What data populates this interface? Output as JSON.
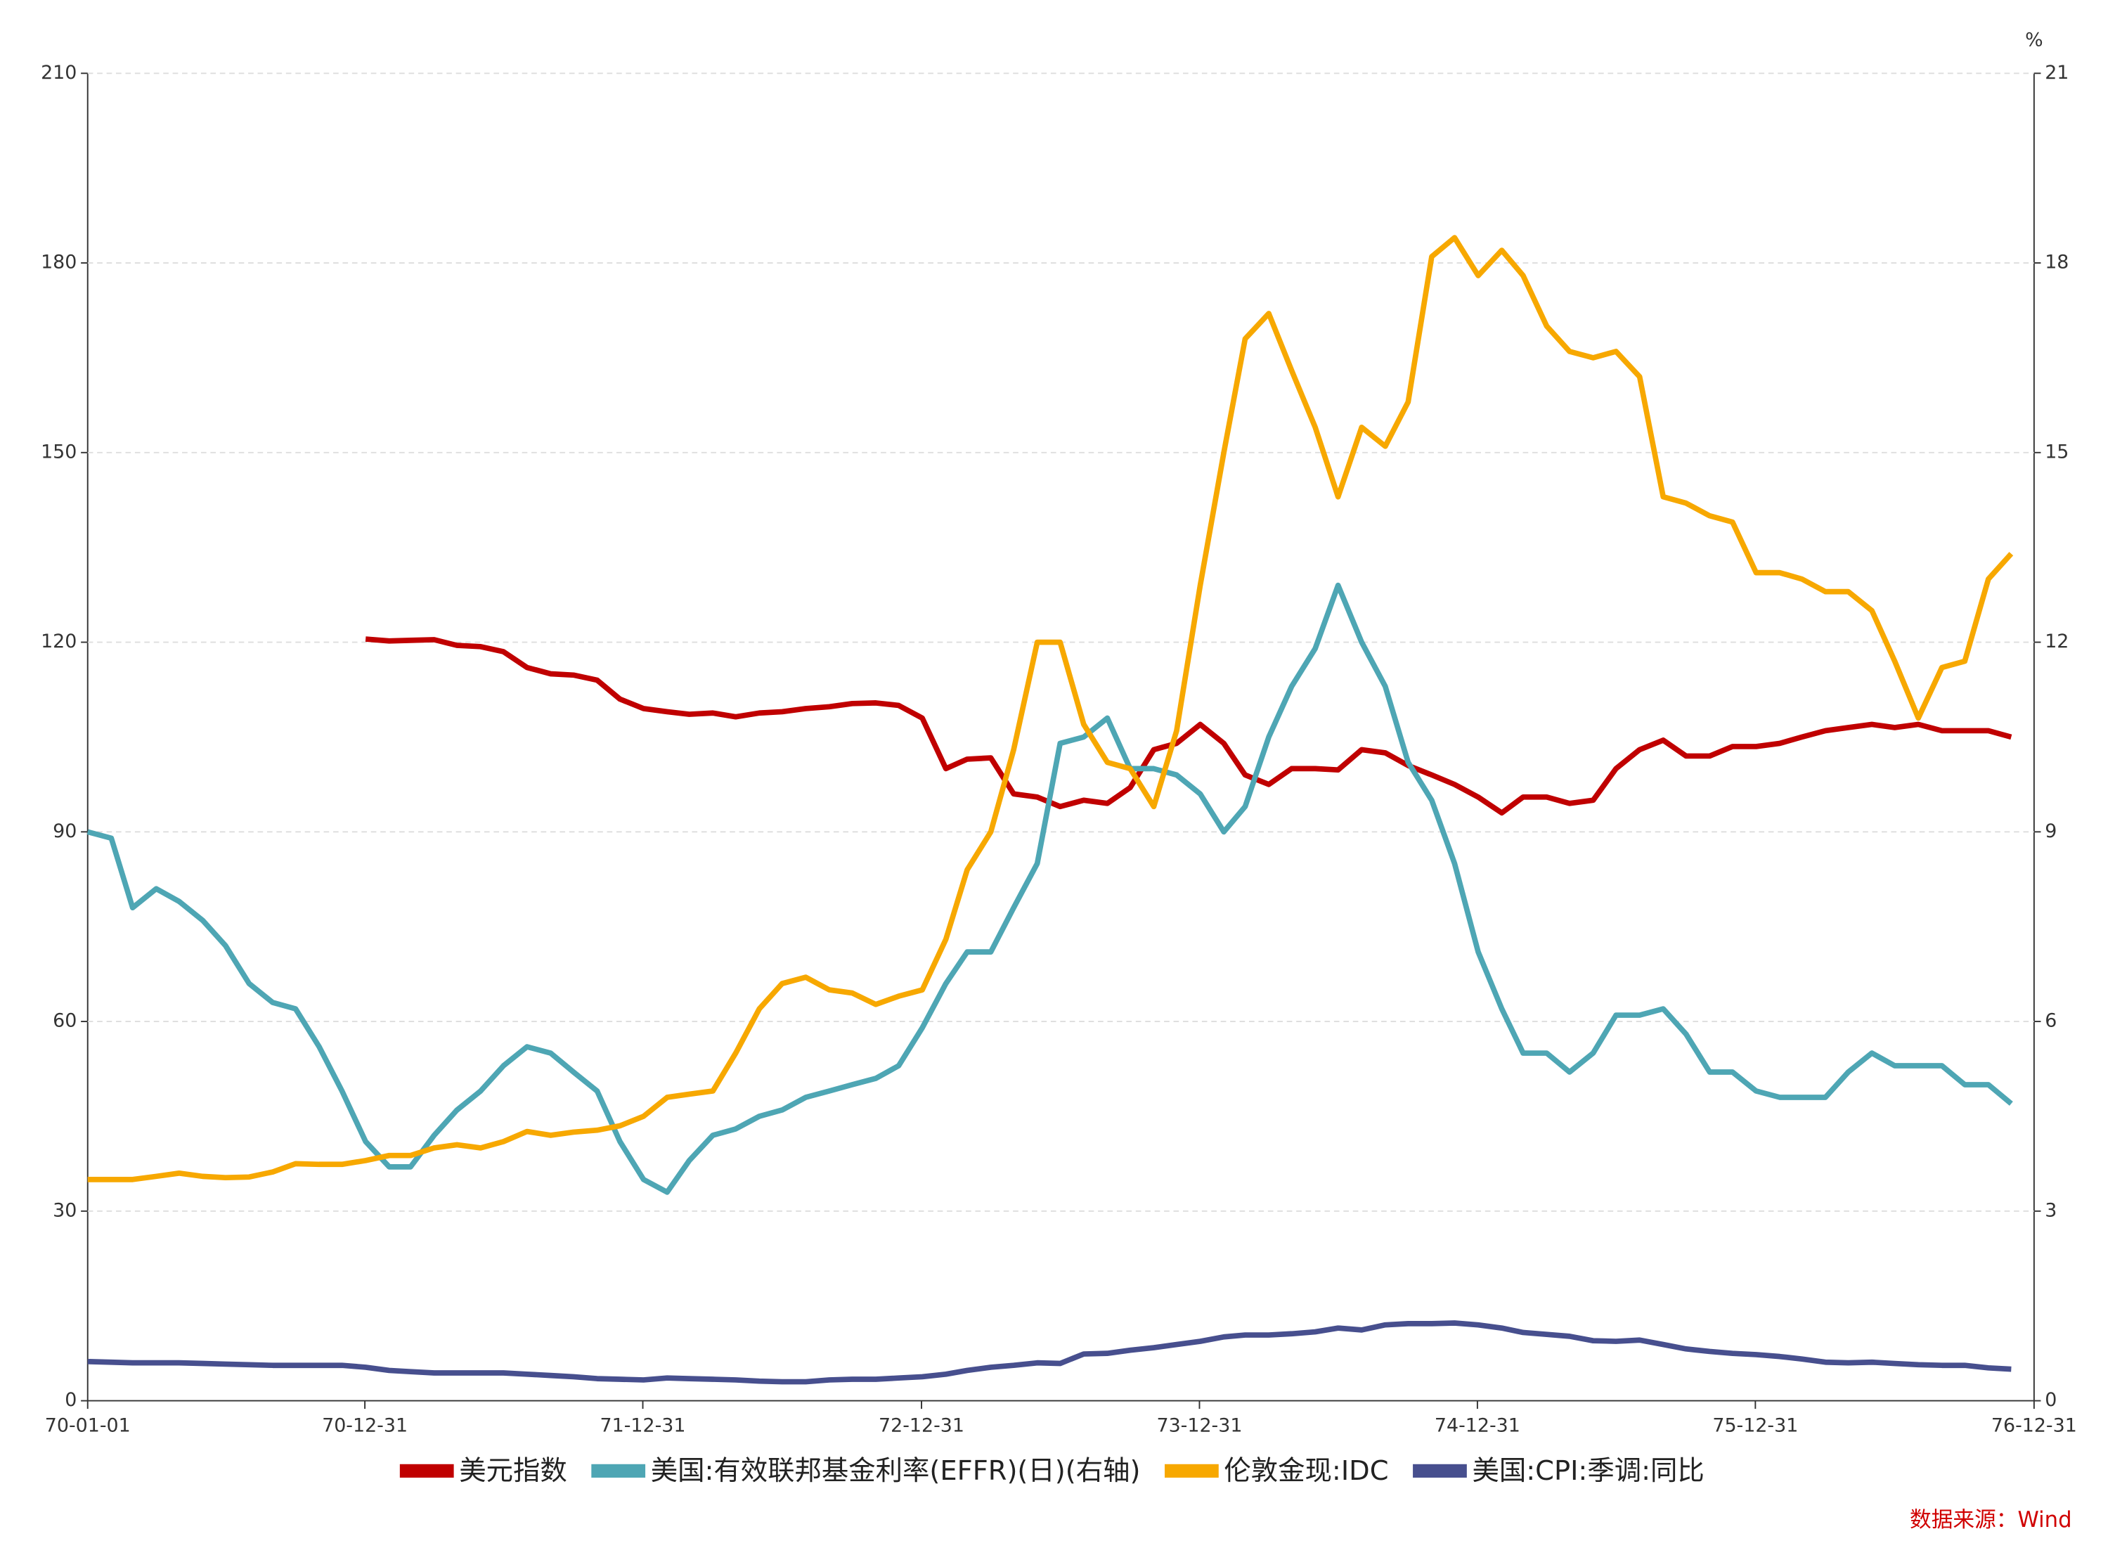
{
  "chart_data": {
    "type": "line",
    "x": [
      "70-01-01",
      "70-02-01",
      "70-03-01",
      "70-04-01",
      "70-05-01",
      "70-06-01",
      "70-07-01",
      "70-08-01",
      "70-09-01",
      "70-10-01",
      "70-11-01",
      "70-12-01",
      "71-01-01",
      "71-02-01",
      "71-03-01",
      "71-04-01",
      "71-05-01",
      "71-06-01",
      "71-07-01",
      "71-08-01",
      "71-09-01",
      "71-10-01",
      "71-11-01",
      "71-12-01",
      "72-01-01",
      "72-02-01",
      "72-03-01",
      "72-04-01",
      "72-05-01",
      "72-06-01",
      "72-07-01",
      "72-08-01",
      "72-09-01",
      "72-10-01",
      "72-11-01",
      "72-12-01",
      "73-01-01",
      "73-02-01",
      "73-03-01",
      "73-04-01",
      "73-05-01",
      "73-06-01",
      "73-07-01",
      "73-08-01",
      "73-09-01",
      "73-10-01",
      "73-11-01",
      "73-12-01",
      "74-01-01",
      "74-02-01",
      "74-03-01",
      "74-04-01",
      "74-05-01",
      "74-06-01",
      "74-07-01",
      "74-08-01",
      "74-09-01",
      "74-10-01",
      "74-11-01",
      "74-12-01",
      "75-01-01",
      "75-02-01",
      "75-03-01",
      "75-04-01",
      "75-05-01",
      "75-06-01",
      "75-07-01",
      "75-08-01",
      "75-09-01",
      "75-10-01",
      "75-11-01",
      "75-12-01",
      "76-01-01",
      "76-02-01",
      "76-03-01",
      "76-04-01",
      "76-05-01",
      "76-06-01",
      "76-07-01",
      "76-08-01",
      "76-09-01",
      "76-10-01",
      "76-11-01",
      "76-12-01"
    ],
    "xlim": [
      "70-01-01",
      "76-12-31"
    ],
    "xticks": [
      "70-01-01",
      "70-12-31",
      "71-12-31",
      "72-12-31",
      "73-12-31",
      "74-12-31",
      "75-12-31",
      "76-12-31"
    ],
    "ylim": [
      0,
      210
    ],
    "yticks": [
      0,
      30,
      60,
      90,
      120,
      150,
      180,
      210
    ],
    "y2lim": [
      0,
      21
    ],
    "y2ticks": [
      0,
      3,
      6,
      9,
      12,
      15,
      18,
      21
    ],
    "y2_unit": "%",
    "grid": true,
    "source": "数据来源：Wind",
    "series": [
      {
        "name": "美元指数",
        "color": "#c00000",
        "values": [
          null,
          null,
          null,
          null,
          null,
          null,
          null,
          null,
          null,
          null,
          null,
          null,
          120.5,
          120.2,
          120.3,
          120.4,
          119.5,
          119.3,
          118.5,
          116,
          115,
          114.8,
          114,
          111,
          109.5,
          109,
          108.6,
          108.8,
          108.2,
          108.8,
          109,
          109.5,
          109.8,
          110.3,
          110.4,
          110,
          108,
          100,
          101.5,
          101.7,
          96,
          95.5,
          94,
          95,
          94.5,
          97,
          103,
          104,
          107,
          104,
          99,
          97.5,
          100,
          100,
          99.8,
          103,
          102.5,
          100.5,
          99,
          97.5,
          95.5,
          93,
          95.5,
          95.5,
          94.5,
          95,
          100,
          103,
          104.5,
          102,
          102,
          103.5,
          103.5,
          104,
          105,
          106,
          106.5,
          107,
          106.5,
          107,
          106,
          106,
          106,
          105
        ]
      },
      {
        "name": "美国:有效联邦基金利率(EFFR)(日)(右轴)",
        "color": "#4ea6b4",
        "axis": "y2",
        "values": [
          9.0,
          8.9,
          7.8,
          8.1,
          7.9,
          7.6,
          7.2,
          6.6,
          6.3,
          6.2,
          5.6,
          4.9,
          4.1,
          3.7,
          3.7,
          4.2,
          4.6,
          4.9,
          5.3,
          5.6,
          5.5,
          5.2,
          4.9,
          4.1,
          3.5,
          3.3,
          3.8,
          4.2,
          4.3,
          4.5,
          4.6,
          4.8,
          4.9,
          5.0,
          5.1,
          5.3,
          5.9,
          6.6,
          7.1,
          7.1,
          7.8,
          8.5,
          10.4,
          10.5,
          10.8,
          10.0,
          10.0,
          9.9,
          9.6,
          9.0,
          9.4,
          10.5,
          11.3,
          11.9,
          12.9,
          12.0,
          11.3,
          10.1,
          9.5,
          8.5,
          7.1,
          6.2,
          5.5,
          5.5,
          5.2,
          5.5,
          6.1,
          6.1,
          6.2,
          5.8,
          5.2,
          5.2,
          4.9,
          4.8,
          4.8,
          4.8,
          5.2,
          5.5,
          5.3,
          5.3,
          5.3,
          5.0,
          5.0,
          4.7
        ]
      },
      {
        "name": "伦敦金现:IDC",
        "color": "#f7a800",
        "values": [
          35,
          35,
          35,
          35.5,
          36,
          35.5,
          35.3,
          35.4,
          36.2,
          37.5,
          37.4,
          37.4,
          38,
          38.8,
          38.8,
          40,
          40.5,
          40,
          41,
          42.6,
          42,
          42.5,
          42.8,
          43.5,
          45,
          48,
          48.5,
          49,
          55,
          62,
          66,
          67,
          65,
          64.5,
          62.7,
          64,
          65,
          73,
          84,
          90,
          103,
          120,
          120,
          107,
          101,
          100,
          94,
          106,
          129,
          150,
          168,
          172,
          163,
          154,
          143,
          154,
          151,
          158,
          181,
          184,
          178,
          182,
          178,
          170,
          166,
          165,
          166,
          162,
          143,
          142,
          140,
          139,
          131,
          131,
          130,
          128,
          128,
          125,
          117,
          108,
          116,
          117,
          130,
          134
        ]
      },
      {
        "name": "美国:CPI:季调:同比",
        "color": "#474f8e",
        "values": [
          6.2,
          6.1,
          6.0,
          6.0,
          6.0,
          5.9,
          5.8,
          5.7,
          5.6,
          5.6,
          5.6,
          5.6,
          5.3,
          4.8,
          4.6,
          4.4,
          4.4,
          4.4,
          4.4,
          4.2,
          4.0,
          3.8,
          3.5,
          3.4,
          3.3,
          3.6,
          3.5,
          3.4,
          3.3,
          3.1,
          3.0,
          3.0,
          3.3,
          3.4,
          3.4,
          3.6,
          3.8,
          4.2,
          4.8,
          5.3,
          5.6,
          6.0,
          5.9,
          7.4,
          7.5,
          8.0,
          8.4,
          8.9,
          9.4,
          10.1,
          10.4,
          10.4,
          10.6,
          10.9,
          11.5,
          11.2,
          12.0,
          12.2,
          12.2,
          12.3,
          12.0,
          11.5,
          10.8,
          10.5,
          10.2,
          9.5,
          9.4,
          9.6,
          8.9,
          8.2,
          7.8,
          7.5,
          7.3,
          7.0,
          6.6,
          6.1,
          6.0,
          6.1,
          5.9,
          5.7,
          5.6,
          5.6,
          5.2,
          5.0
        ]
      }
    ]
  }
}
